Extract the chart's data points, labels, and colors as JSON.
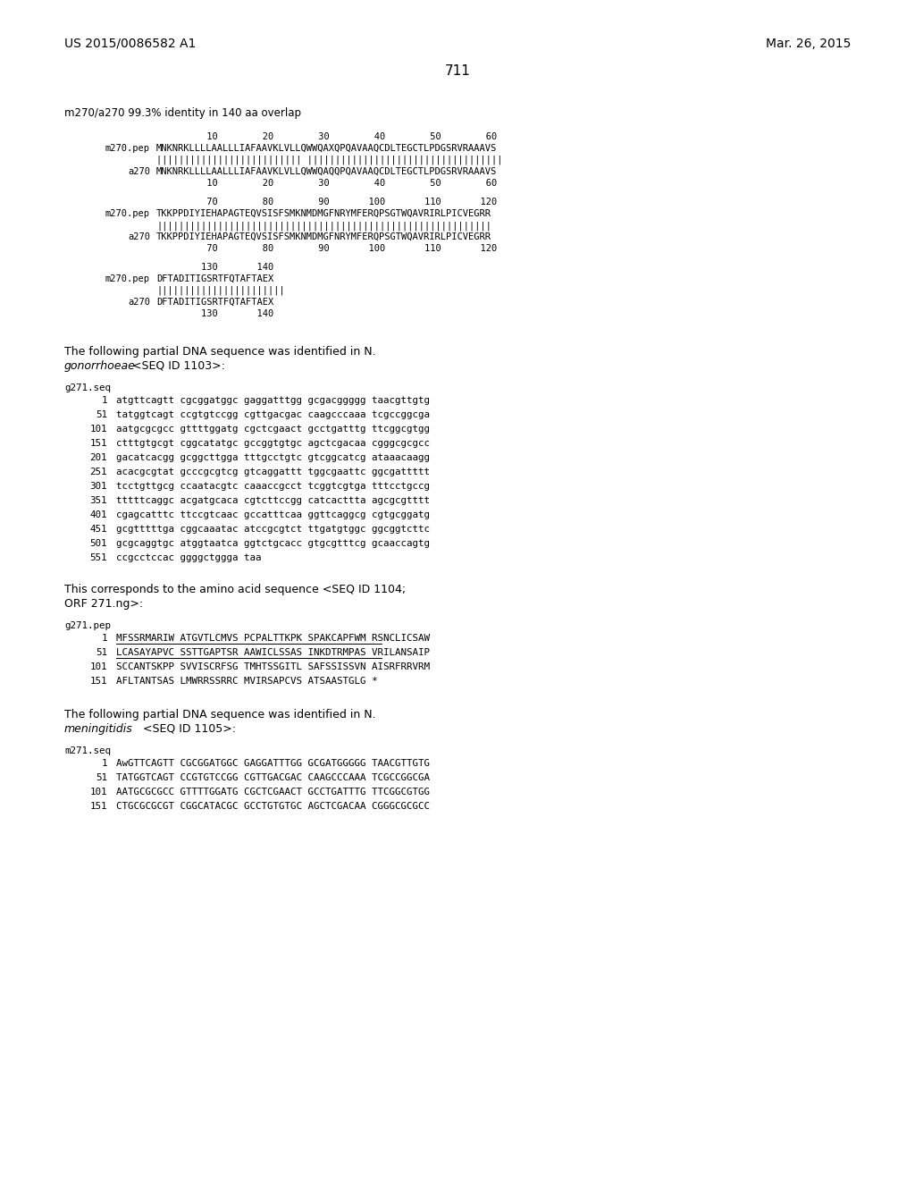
{
  "background_color": "#ffffff",
  "page_number": "711",
  "patent_number": "US 2015/0086582 A1",
  "patent_date": "Mar. 26, 2015",
  "title_line": "m270/a270 99.3% identity in 140 aa overlap",
  "alignment_block": [
    {
      "type": "num",
      "label": "",
      "text": "         10        20        30        40        50        60"
    },
    {
      "type": "seq",
      "label": "m270.pep",
      "text": "MNKNRKLLLLAALLLIAFAAVKLVLLQWWQAXQPQAVAAQCDLTEGCTLPDGSRVRAAAVS"
    },
    {
      "type": "bar",
      "label": "",
      "text": "|||||||||||||||||||||||||| |||||||||||||||||||||||||||||||||||"
    },
    {
      "type": "seq",
      "label": "a270",
      "text": "MNKNRKLLLLAALLLIAFAAVKLVLLQWWQAQQPQAVAAQCDLTEGCTLPDGSRVRAAAVS"
    },
    {
      "type": "num",
      "label": "",
      "text": "         10        20        30        40        50        60"
    },
    {
      "type": "blank",
      "label": "",
      "text": ""
    },
    {
      "type": "num",
      "label": "",
      "text": "         70        80        90       100       110       120"
    },
    {
      "type": "seq",
      "label": "m270.pep",
      "text": "TKKPPDIYIEHAPAGTEQVSISFSMKNMDMGFNRYMFERQPSGTWQAVRIRLPICVEGRR"
    },
    {
      "type": "bar",
      "label": "",
      "text": "||||||||||||||||||||||||||||||||||||||||||||||||||||||||||||"
    },
    {
      "type": "seq",
      "label": "a270",
      "text": "TKKPPDIYIEHAPAGTEQVSISFSMKNMDMGFNRYMFERQPSGTWQAVRIRLPICVEGRR"
    },
    {
      "type": "num",
      "label": "",
      "text": "         70        80        90       100       110       120"
    },
    {
      "type": "blank",
      "label": "",
      "text": ""
    },
    {
      "type": "num",
      "label": "",
      "text": "        130       140"
    },
    {
      "type": "seq",
      "label": "m270.pep",
      "text": "DFTADITIGSRTFQTAFTAEX"
    },
    {
      "type": "bar",
      "label": "",
      "text": "|||||||||||||||||||||||"
    },
    {
      "type": "seq",
      "label": "a270",
      "text": "DFTADITIGSRTFQTAFTAEX"
    },
    {
      "type": "num",
      "label": "",
      "text": "        130       140"
    }
  ],
  "paragraph1_a": "The following partial DNA sequence was identified in ",
  "paragraph1_b": "N.",
  "paragraph1_c": "gonorrhoeae",
  "paragraph1_d": " <SEQ ID 1103>:",
  "g271seq_label": "g271.seq",
  "g271seq_lines": [
    {
      "num": "1",
      "seq": "atgttcagtt cgcggatggc gaggatttgg gcgacggggg taacgttgtg"
    },
    {
      "num": "51",
      "seq": "tatggtcagt ccgtgtccgg cgttgacgac caagcccaaa tcgccggcga"
    },
    {
      "num": "101",
      "seq": "aatgcgcgcc gttttggatg cgctcgaact gcctgatttg ttcggcgtgg"
    },
    {
      "num": "151",
      "seq": "ctttgtgcgt cggcatatgc gccggtgtgc agctcgacaa cgggcgcgcc"
    },
    {
      "num": "201",
      "seq": "gacatcacgg gcggcttgga tttgcctgtc gtcggcatcg ataaacaagg"
    },
    {
      "num": "251",
      "seq": "acacgcgtat gcccgcgtcg gtcaggattt tggcgaattc ggcgattttt"
    },
    {
      "num": "301",
      "seq": "tcctgttgcg ccaatacgtc caaaccgcct tcggtcgtga tttcctgccg"
    },
    {
      "num": "351",
      "seq": "tttttcaggc acgatgcaca cgtcttccgg catcacttta agcgcgtttt"
    },
    {
      "num": "401",
      "seq": "cgagcatttc ttccgtcaac gccatttcaa ggttcaggcg cgtgcggatg"
    },
    {
      "num": "451",
      "seq": "gcgtttttga cggcaaatac atccgcgtct ttgatgtggc ggcggtcttc"
    },
    {
      "num": "501",
      "seq": "gcgcaggtgc atggtaatca ggtctgcacc gtgcgtttcg gcaaccagtg"
    },
    {
      "num": "551",
      "seq": "ccgcctccac ggggctggga taa"
    }
  ],
  "paragraph2_a": "This corresponds to the amino acid sequence <SEQ ID 1104;",
  "paragraph2_b": "ORF 271.ng>:",
  "g271pep_label": "g271.pep",
  "g271pep_lines": [
    {
      "num": "1",
      "seq": "MFSSRMARIW ATGVTLCMVS PCPALTTKPK SPAKCAPFWM RSNCLICSAW",
      "underline": true
    },
    {
      "num": "51",
      "seq": "LCASAYAPVC SSTTGAPTSR AAWICLSSAS INKDTRMPAS VRILANSAIP",
      "underline": true
    },
    {
      "num": "101",
      "seq": "SCCANTSKPP SVVISCRFSG TMHTSSGITL SAFSSISSVN AISRFRRVRM",
      "underline": false
    },
    {
      "num": "151",
      "seq": "AFLTANTSAS LMWRRSSRRC MVIRSAPCVS ATSAASTGLG *",
      "underline": false
    }
  ],
  "paragraph3_a": "The following partial DNA sequence was identified in ",
  "paragraph3_b": "N.",
  "paragraph3_c": "meningitidis",
  "paragraph3_d": " <SEQ ID 1105>:",
  "m271seq_label": "m271.seq",
  "m271seq_lines": [
    {
      "num": "1",
      "seq": "AwGTTCAGTT CGCGGATGGC GAGGATTTGG GCGATGGGGG TAACGTTGTG"
    },
    {
      "num": "51",
      "seq": "TATGGTCAGT CCGTGTCCGG CGTTGACGAC CAAGCCCAAA TCGCCGGCGA"
    },
    {
      "num": "101",
      "seq": "AATGCGCGCC GTTTTGGATG CGCTCGAACT GCCTGATTTG TTCGGCGTGG"
    },
    {
      "num": "151",
      "seq": "CTGCGCGCGT CGGCATACGC GCCTGTGTGC AGCTCGACAA CGGGCGCGCC"
    }
  ]
}
